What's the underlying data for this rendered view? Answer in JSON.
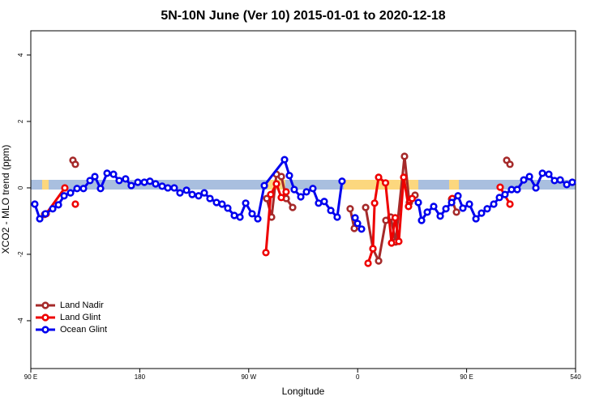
{
  "chart_data": {
    "type": "line",
    "title": "5N-10N June (Ver 10)   2015-01-01 to 2020-12-18",
    "x_label": "Longitude",
    "y_label": "XCO2 - MLO trend (ppm)",
    "xlim": [
      90,
      540
    ],
    "ylim": [
      -5.44,
      4.73
    ],
    "xticks": [
      {
        "value": 90,
        "label": "90 E"
      },
      180,
      {
        "value": 270,
        "label": "90 W"
      },
      {
        "value": 360,
        "label": "0"
      },
      {
        "value": 450,
        "label": "90 E"
      },
      540
    ],
    "yticks": [
      -4,
      -2,
      0,
      2,
      4
    ],
    "legend": "bottom-left",
    "series": [
      {
        "name": "Land Nadir",
        "color": "#a52a2a",
        "x": [
          101.4,
          null,
          124.8,
          126.8,
          null,
          284.9,
          288.9,
          292.9,
          297,
          301,
          306.3,
          null,
          353.8,
          357.2,
          null,
          366.6,
          372.6,
          377.3,
          383.3,
          387.3,
          391.3,
          398.7,
          402.7,
          407.4,
          null,
          437.6,
          441.6,
          null,
          483.1,
          485.8
        ],
        "values": [
          -0.8,
          null,
          0.83,
          0.71,
          null,
          -0.32,
          -0.88,
          0.41,
          0.34,
          -0.32,
          -0.59,
          null,
          -0.63,
          -1.22,
          null,
          -0.59,
          -1.83,
          -2.2,
          -0.98,
          -0.88,
          -1.63,
          0.95,
          -0.44,
          -0.22,
          null,
          -0.34,
          -0.73,
          null,
          0.83,
          0.71
        ]
      },
      {
        "name": "Land Glint",
        "color": "#ee0000",
        "x": [
          102.7,
          118.1,
          null,
          126.8,
          null,
          284.2,
          288.2,
          292.9,
          296.9,
          300.9,
          null,
          368.6,
          372.6,
          374,
          377.3,
          383,
          388,
          391,
          394,
          398,
          402,
          405,
          null,
          438.2,
          null,
          477.7,
          485.8
        ],
        "values": [
          -0.78,
          0,
          null,
          -0.49,
          null,
          -1.95,
          -0.2,
          0.12,
          -0.29,
          -0.12,
          null,
          -2.27,
          -1.83,
          -0.46,
          0.32,
          0.15,
          -1.66,
          -0.9,
          -1.61,
          0.32,
          -0.56,
          -0.32,
          null,
          -0.32,
          null,
          0.02,
          -0.49
        ]
      },
      {
        "name": "Ocean Glint",
        "color": "#0000ee",
        "x": [
          93.3,
          97.4,
          102.1,
          108.1,
          112.8,
          117.5,
          122.8,
          128.2,
          133.5,
          138.9,
          142.9,
          147.6,
          153,
          158.3,
          163,
          168.3,
          173,
          178.4,
          183.8,
          188.4,
          193.1,
          198.5,
          203.2,
          208.5,
          213.2,
          218.6,
          223.3,
          228.6,
          233.3,
          238,
          243.4,
          248,
          252.7,
          258.1,
          262.8,
          267.5,
          272.8,
          277.5,
          282.9,
          299.6,
          303.6,
          307.6,
          313,
          317.7,
          323,
          327.7,
          332.4,
          337.8,
          343.1,
          347.1,
          null,
          357.9,
          359.9,
          363.2,
          null,
          410.1,
          412.8,
          417.5,
          422.8,
          428.2,
          432.9,
          437.6,
          442.9,
          446.9,
          452.3,
          457.7,
          462.3,
          467,
          472.4,
          477.1,
          481.7,
          487.1,
          491.8,
          497.2,
          501.9,
          507.2,
          512.6,
          517.9,
          522.6,
          527.3,
          532.7,
          537.3
        ],
        "values": [
          -0.49,
          -0.93,
          -0.78,
          -0.63,
          -0.51,
          -0.24,
          -0.15,
          -0.02,
          -0.02,
          0.22,
          0.34,
          -0.02,
          0.44,
          0.41,
          0.22,
          0.27,
          0.07,
          0.17,
          0.17,
          0.2,
          0.12,
          0.05,
          0,
          0,
          -0.15,
          -0.07,
          -0.2,
          -0.24,
          -0.15,
          -0.32,
          -0.44,
          -0.49,
          -0.61,
          -0.83,
          -0.88,
          -0.46,
          -0.78,
          -0.93,
          0.07,
          0.85,
          0.37,
          -0.05,
          -0.27,
          -0.12,
          -0.02,
          -0.46,
          -0.41,
          -0.68,
          -0.88,
          0.2,
          null,
          -0.9,
          -1.07,
          -1.24,
          null,
          -0.44,
          -0.98,
          -0.73,
          -0.56,
          -0.85,
          -0.63,
          -0.44,
          -0.24,
          -0.61,
          -0.49,
          -0.93,
          -0.76,
          -0.63,
          -0.49,
          -0.29,
          -0.2,
          -0.05,
          -0.05,
          0.24,
          0.34,
          0,
          0.44,
          0.41,
          0.22,
          0.24,
          0.1,
          0.17
        ]
      }
    ]
  }
}
